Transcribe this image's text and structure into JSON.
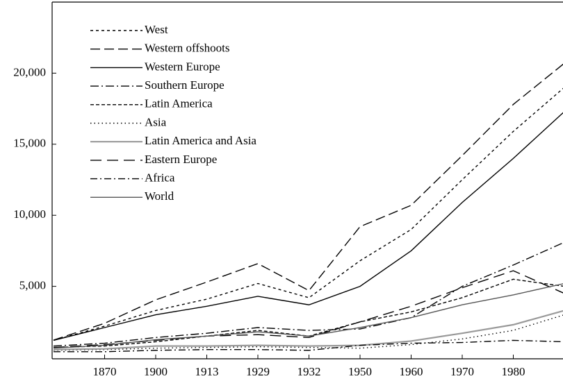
{
  "chart_data": {
    "type": "line",
    "categories": [
      null,
      "1870",
      "1900",
      "1913",
      "1929",
      "1932",
      "1950",
      "1960",
      "1970",
      "1980",
      null
    ],
    "ylim": [
      0,
      25000
    ],
    "yticks": [
      {
        "value": 5000,
        "label": "5,000"
      },
      {
        "value": 10000,
        "label": "10,000"
      },
      {
        "value": 15000,
        "label": "15,000"
      },
      {
        "value": 20000,
        "label": "20,000"
      }
    ],
    "series": [
      {
        "name": "West",
        "color": "#000000",
        "dash": "4,4",
        "values": [
          1200,
          2200,
          3300,
          4100,
          5200,
          4200,
          6800,
          9000,
          12500,
          15900,
          19000
        ]
      },
      {
        "name": "Western offshoots",
        "color": "#000000",
        "dash": "14,6",
        "values": [
          1220,
          2400,
          4050,
          5300,
          6600,
          4700,
          9200,
          10700,
          14200,
          17800,
          20700
        ]
      },
      {
        "name": "Western Europe",
        "color": "#000000",
        "dash": "none",
        "values": [
          1200,
          2100,
          3000,
          3600,
          4300,
          3700,
          5000,
          7500,
          10900,
          14000,
          17300
        ]
      },
      {
        "name": "Southern Europe",
        "color": "#000000",
        "dash": "12,4,2,4",
        "values": [
          800,
          1000,
          1400,
          1700,
          2100,
          1900,
          2000,
          2800,
          5000,
          6500,
          8100
        ]
      },
      {
        "name": "Latin America",
        "color": "#000000",
        "dash": "5,3",
        "values": [
          700,
          800,
          1100,
          1500,
          1900,
          1500,
          2500,
          3200,
          4200,
          5500,
          5000
        ]
      },
      {
        "name": "Asia",
        "color": "#000000",
        "dash": "1.5,4",
        "values": [
          500,
          550,
          650,
          700,
          750,
          700,
          650,
          900,
          1300,
          1900,
          3000
        ]
      },
      {
        "name": "Latin America and Asia",
        "color": "#999999",
        "dash": "none",
        "values": [
          550,
          600,
          800,
          800,
          850,
          800,
          850,
          1150,
          1700,
          2300,
          3300
        ]
      },
      {
        "name": "Eastern Europe",
        "color": "#000000",
        "dash": "16,8",
        "values": [
          700,
          900,
          1200,
          1500,
          1600,
          1400,
          2500,
          3600,
          4900,
          6100,
          4500
        ]
      },
      {
        "name": "Africa",
        "color": "#000000",
        "dash": "10,4,2,4",
        "values": [
          400,
          400,
          500,
          550,
          550,
          500,
          850,
          1000,
          1050,
          1200,
          1100
        ]
      },
      {
        "name": "World",
        "color": "#555555",
        "dash": "none",
        "values": [
          650,
          850,
          1250,
          1500,
          1800,
          1500,
          2100,
          2800,
          3700,
          4400,
          5200
        ]
      }
    ]
  }
}
